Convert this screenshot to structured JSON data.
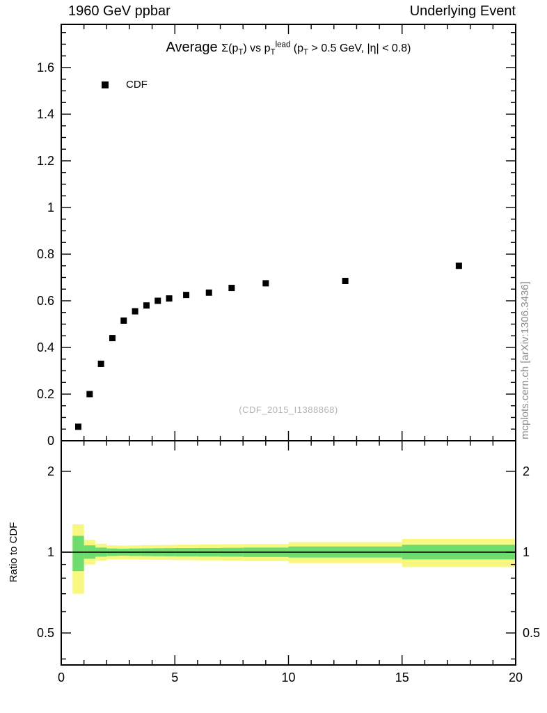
{
  "header": {
    "left": "1960 GeV ppbar",
    "right": "Underlying Event"
  },
  "chart_data": {
    "type": "scatter",
    "title": "Average Σ(p_T) vs p_T^lead (p_T > 0.5 GeV, |η| < 0.8)",
    "title_parts": [
      {
        "t": "Average ",
        "s": "lg"
      },
      {
        "t": "Σ(p",
        "s": "n"
      },
      {
        "t": "T",
        "s": "sub"
      },
      {
        "t": ") vs p",
        "s": "n"
      },
      {
        "t": "T",
        "s": "sub"
      },
      {
        "t": "lead",
        "s": "sup"
      },
      {
        "t": " (p",
        "s": "n"
      },
      {
        "t": "T",
        "s": "sub"
      },
      {
        "t": " > 0.5 GeV, |η| < 0.8)",
        "s": "n"
      }
    ],
    "watermark": "(CDF_2015_I1388868)",
    "side_note": "mcplots.cern.ch [arXiv:1306.3436]",
    "xlim": [
      0,
      20
    ],
    "x_minor_step": 1,
    "xticks": [
      {
        "v": 0,
        "label": "0"
      },
      {
        "v": 5,
        "label": "5"
      },
      {
        "v": 10,
        "label": "10"
      },
      {
        "v": 15,
        "label": "15"
      },
      {
        "v": 20,
        "label": "20"
      }
    ],
    "legend": [
      {
        "label": "CDF",
        "marker": "square",
        "color": "#000000"
      }
    ],
    "main": {
      "ylim": [
        0,
        1.785
      ],
      "yticks": [
        {
          "v": 0,
          "label": "0"
        },
        {
          "v": 0.2,
          "label": "0.2"
        },
        {
          "v": 0.4,
          "label": "0.4"
        },
        {
          "v": 0.6,
          "label": "0.6"
        },
        {
          "v": 0.8,
          "label": "0.8"
        },
        {
          "v": 1,
          "label": "1"
        },
        {
          "v": 1.2,
          "label": "1.2"
        },
        {
          "v": 1.4,
          "label": "1.4"
        },
        {
          "v": 1.6,
          "label": "1.6"
        }
      ],
      "series": [
        {
          "name": "CDF",
          "marker": "square",
          "color": "#000000",
          "x": [
            0.75,
            1.25,
            1.75,
            2.25,
            2.75,
            3.25,
            3.75,
            4.25,
            4.75,
            5.5,
            6.5,
            7.5,
            9.0,
            12.5,
            17.5
          ],
          "y": [
            0.06,
            0.2,
            0.33,
            0.44,
            0.515,
            0.555,
            0.58,
            0.6,
            0.61,
            0.625,
            0.635,
            0.655,
            0.675,
            0.685,
            0.75
          ]
        }
      ]
    },
    "ratio": {
      "ylabel": "Ratio to CDF",
      "scale": "log",
      "ylim": [
        0.38,
        2.6
      ],
      "yticks": [
        {
          "v": 0.5,
          "label": "0.5"
        },
        {
          "v": 1,
          "label": "1"
        },
        {
          "v": 2,
          "label": "2"
        }
      ],
      "y_minor": [
        0.4,
        0.6,
        0.7,
        0.8,
        0.9
      ],
      "reference_line": 1,
      "band_colors": {
        "outer": "#f8f880",
        "inner": "#6edc6e"
      },
      "bands": [
        {
          "x0": 0.5,
          "x1": 1,
          "yellow": [
            0.7,
            1.27
          ],
          "green": [
            0.85,
            1.15
          ]
        },
        {
          "x0": 1,
          "x1": 1.5,
          "yellow": [
            0.9,
            1.11
          ],
          "green": [
            0.945,
            1.06
          ]
        },
        {
          "x0": 1.5,
          "x1": 2,
          "yellow": [
            0.93,
            1.075
          ],
          "green": [
            0.962,
            1.04
          ]
        },
        {
          "x0": 2,
          "x1": 2.5,
          "yellow": [
            0.94,
            1.06
          ],
          "green": [
            0.968,
            1.032
          ]
        },
        {
          "x0": 2.5,
          "x1": 3,
          "yellow": [
            0.942,
            1.058
          ],
          "green": [
            0.97,
            1.03
          ]
        },
        {
          "x0": 3,
          "x1": 3.5,
          "yellow": [
            0.94,
            1.06
          ],
          "green": [
            0.968,
            1.032
          ]
        },
        {
          "x0": 3.5,
          "x1": 4,
          "yellow": [
            0.938,
            1.062
          ],
          "green": [
            0.967,
            1.033
          ]
        },
        {
          "x0": 4,
          "x1": 4.5,
          "yellow": [
            0.937,
            1.063
          ],
          "green": [
            0.966,
            1.034
          ]
        },
        {
          "x0": 4.5,
          "x1": 5,
          "yellow": [
            0.936,
            1.064
          ],
          "green": [
            0.965,
            1.035
          ]
        },
        {
          "x0": 5,
          "x1": 6,
          "yellow": [
            0.934,
            1.066
          ],
          "green": [
            0.964,
            1.036
          ]
        },
        {
          "x0": 6,
          "x1": 7,
          "yellow": [
            0.932,
            1.068
          ],
          "green": [
            0.963,
            1.037
          ]
        },
        {
          "x0": 7,
          "x1": 8,
          "yellow": [
            0.93,
            1.07
          ],
          "green": [
            0.962,
            1.038
          ]
        },
        {
          "x0": 8,
          "x1": 10,
          "yellow": [
            0.927,
            1.073
          ],
          "green": [
            0.96,
            1.04
          ]
        },
        {
          "x0": 10,
          "x1": 15,
          "yellow": [
            0.91,
            1.09
          ],
          "green": [
            0.955,
            1.05
          ]
        },
        {
          "x0": 15,
          "x1": 20,
          "yellow": [
            0.88,
            1.12
          ],
          "green": [
            0.94,
            1.065
          ]
        }
      ]
    }
  }
}
